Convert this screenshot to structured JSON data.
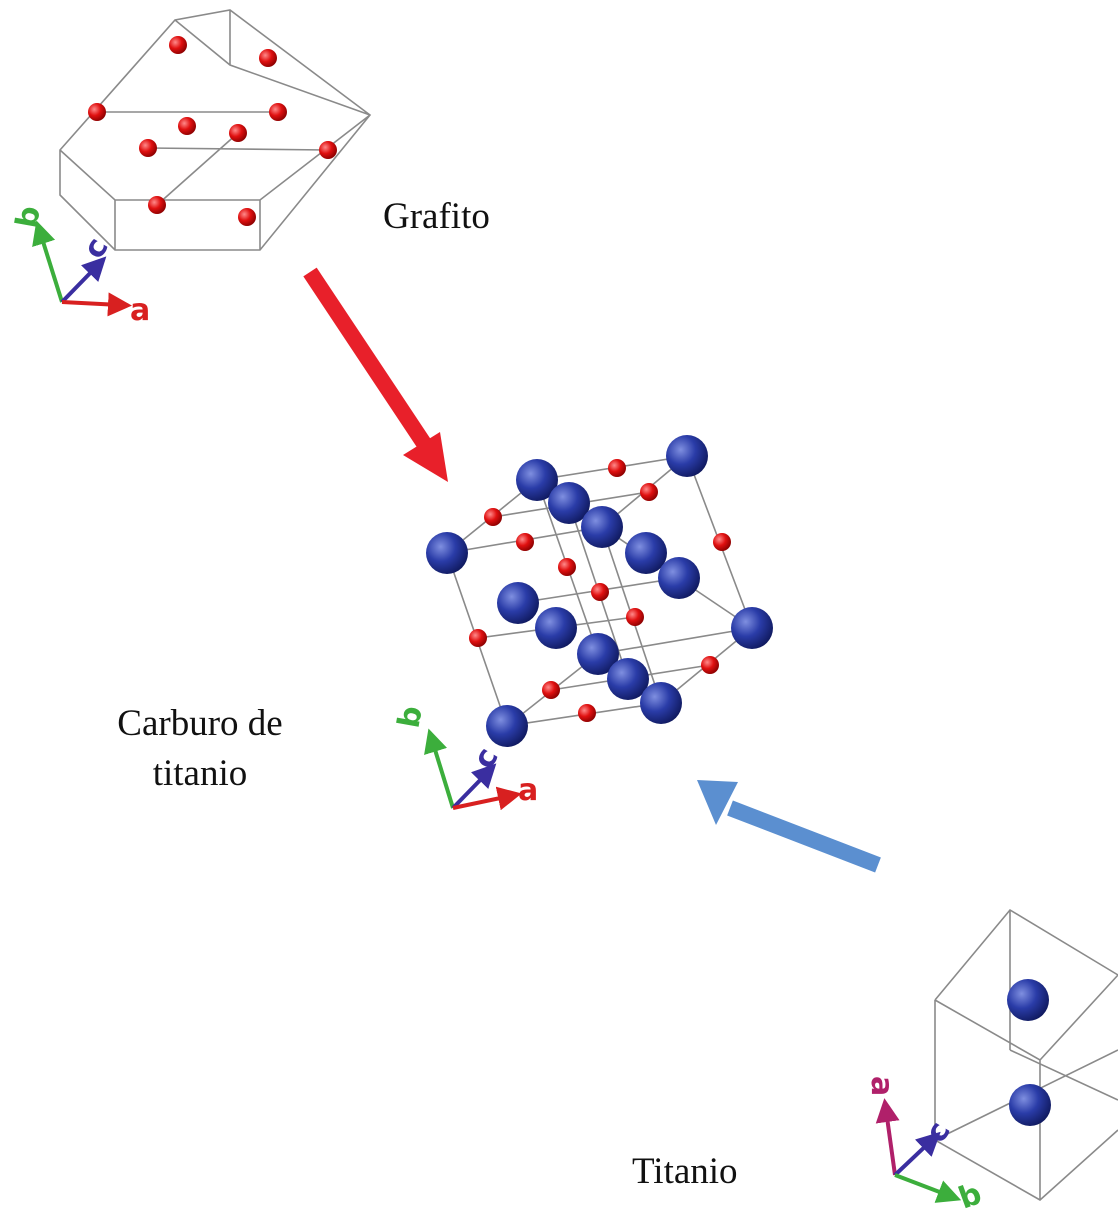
{
  "nodes": [
    {
      "label": "Grafito",
      "axes": {
        "a": "a",
        "b": "b",
        "c": "c"
      }
    },
    {
      "label": [
        "Carburo de",
        "titanio"
      ],
      "axes": {
        "a": "a",
        "b": "b",
        "c": "c"
      }
    },
    {
      "label": "Titanio",
      "axes": {
        "a": "a",
        "b": "b",
        "c": "c"
      }
    }
  ]
}
